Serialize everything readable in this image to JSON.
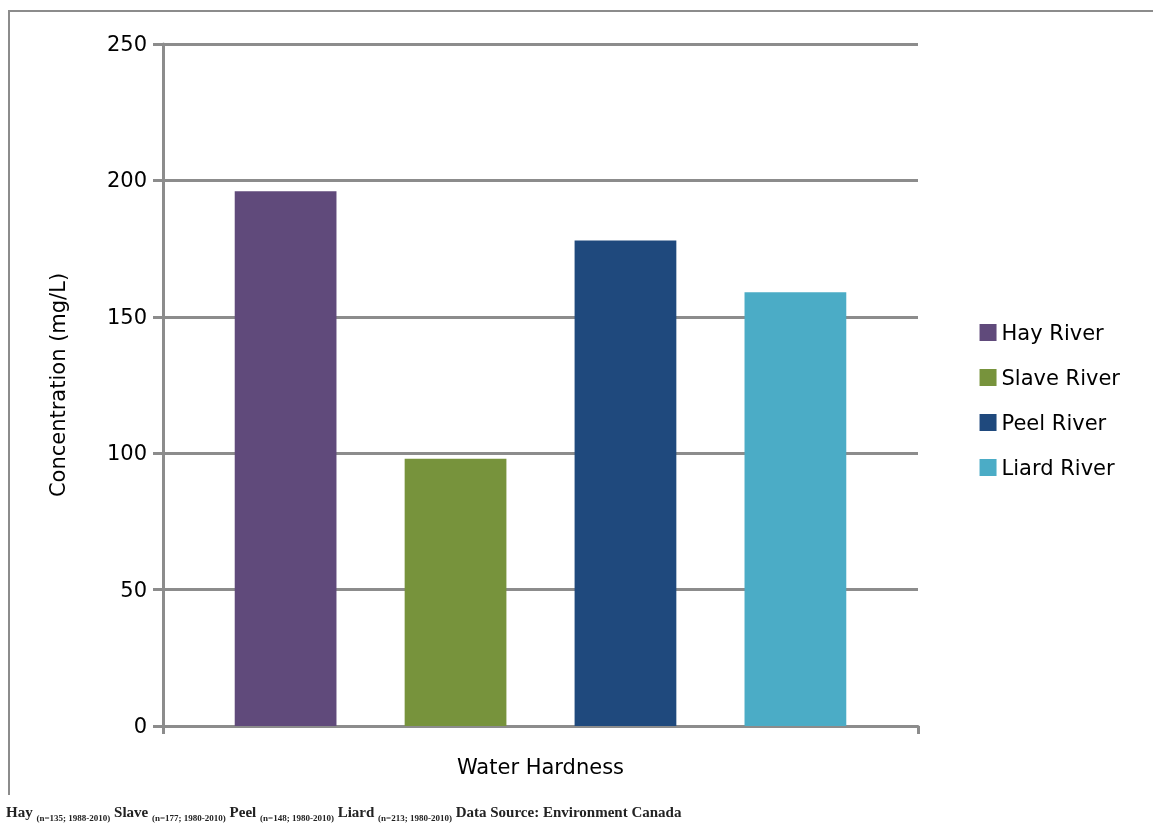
{
  "chart_data": {
    "type": "bar",
    "ylabel": "Concentration (mg/L)",
    "categories": [
      "Water Hardness"
    ],
    "series": [
      {
        "name": "Hay River",
        "color": "#604a7b",
        "values": [
          196
        ]
      },
      {
        "name": "Slave River",
        "color": "#77933c",
        "values": [
          98
        ]
      },
      {
        "name": "Peel River",
        "color": "#1f497d",
        "values": [
          178
        ]
      },
      {
        "name": "Liard River",
        "color": "#4bacc6",
        "values": [
          159
        ]
      }
    ],
    "ylim": [
      0,
      250
    ],
    "yticks": [
      0,
      50,
      100,
      150,
      200,
      250
    ],
    "grid": "y",
    "legend": "right",
    "annotations": [
      "Hay $_{(n=135; 1988-2010)}$ Slave $_{(n=177; 1980-2010)}$ Peel $_{(n=148; 1980-2010)}$ Liard $_{(n=213; 1980-2010)}$ Data Source: Environment Canada"
    ]
  }
}
